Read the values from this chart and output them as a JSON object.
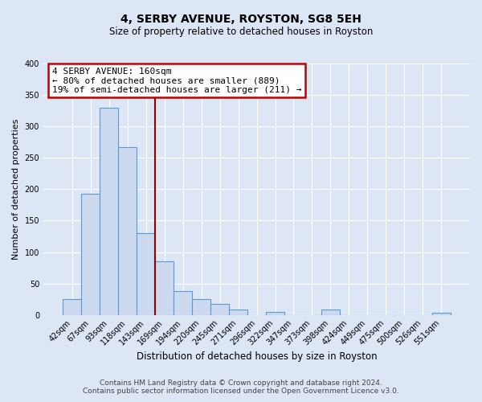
{
  "title": "4, SERBY AVENUE, ROYSTON, SG8 5EH",
  "subtitle": "Size of property relative to detached houses in Royston",
  "xlabel": "Distribution of detached houses by size in Royston",
  "ylabel": "Number of detached properties",
  "bar_labels": [
    "42sqm",
    "67sqm",
    "93sqm",
    "118sqm",
    "143sqm",
    "169sqm",
    "194sqm",
    "220sqm",
    "245sqm",
    "271sqm",
    "296sqm",
    "322sqm",
    "347sqm",
    "373sqm",
    "398sqm",
    "424sqm",
    "449sqm",
    "475sqm",
    "500sqm",
    "526sqm",
    "551sqm"
  ],
  "bar_values": [
    25,
    193,
    330,
    267,
    130,
    85,
    38,
    25,
    17,
    8,
    0,
    5,
    0,
    0,
    8,
    0,
    0,
    0,
    0,
    0,
    3
  ],
  "bar_color": "#ccd9ee",
  "bar_edge_color": "#5b9bd5",
  "vline_x": 4.5,
  "vline_color": "#8b0000",
  "annotation_text": "4 SERBY AVENUE: 160sqm\n← 80% of detached houses are smaller (889)\n19% of semi-detached houses are larger (211) →",
  "annotation_box_color": "#ffffff",
  "annotation_box_edge_color": "#c00000",
  "ylim": [
    0,
    400
  ],
  "yticks": [
    0,
    50,
    100,
    150,
    200,
    250,
    300,
    350,
    400
  ],
  "background_color": "#dce6f5",
  "footer_line1": "Contains HM Land Registry data © Crown copyright and database right 2024.",
  "footer_line2": "Contains public sector information licensed under the Open Government Licence v3.0.",
  "title_fontsize": 10,
  "subtitle_fontsize": 8.5,
  "ylabel_fontsize": 8,
  "xlabel_fontsize": 8.5,
  "tick_fontsize": 7,
  "footer_fontsize": 6.5,
  "annot_fontsize": 8
}
